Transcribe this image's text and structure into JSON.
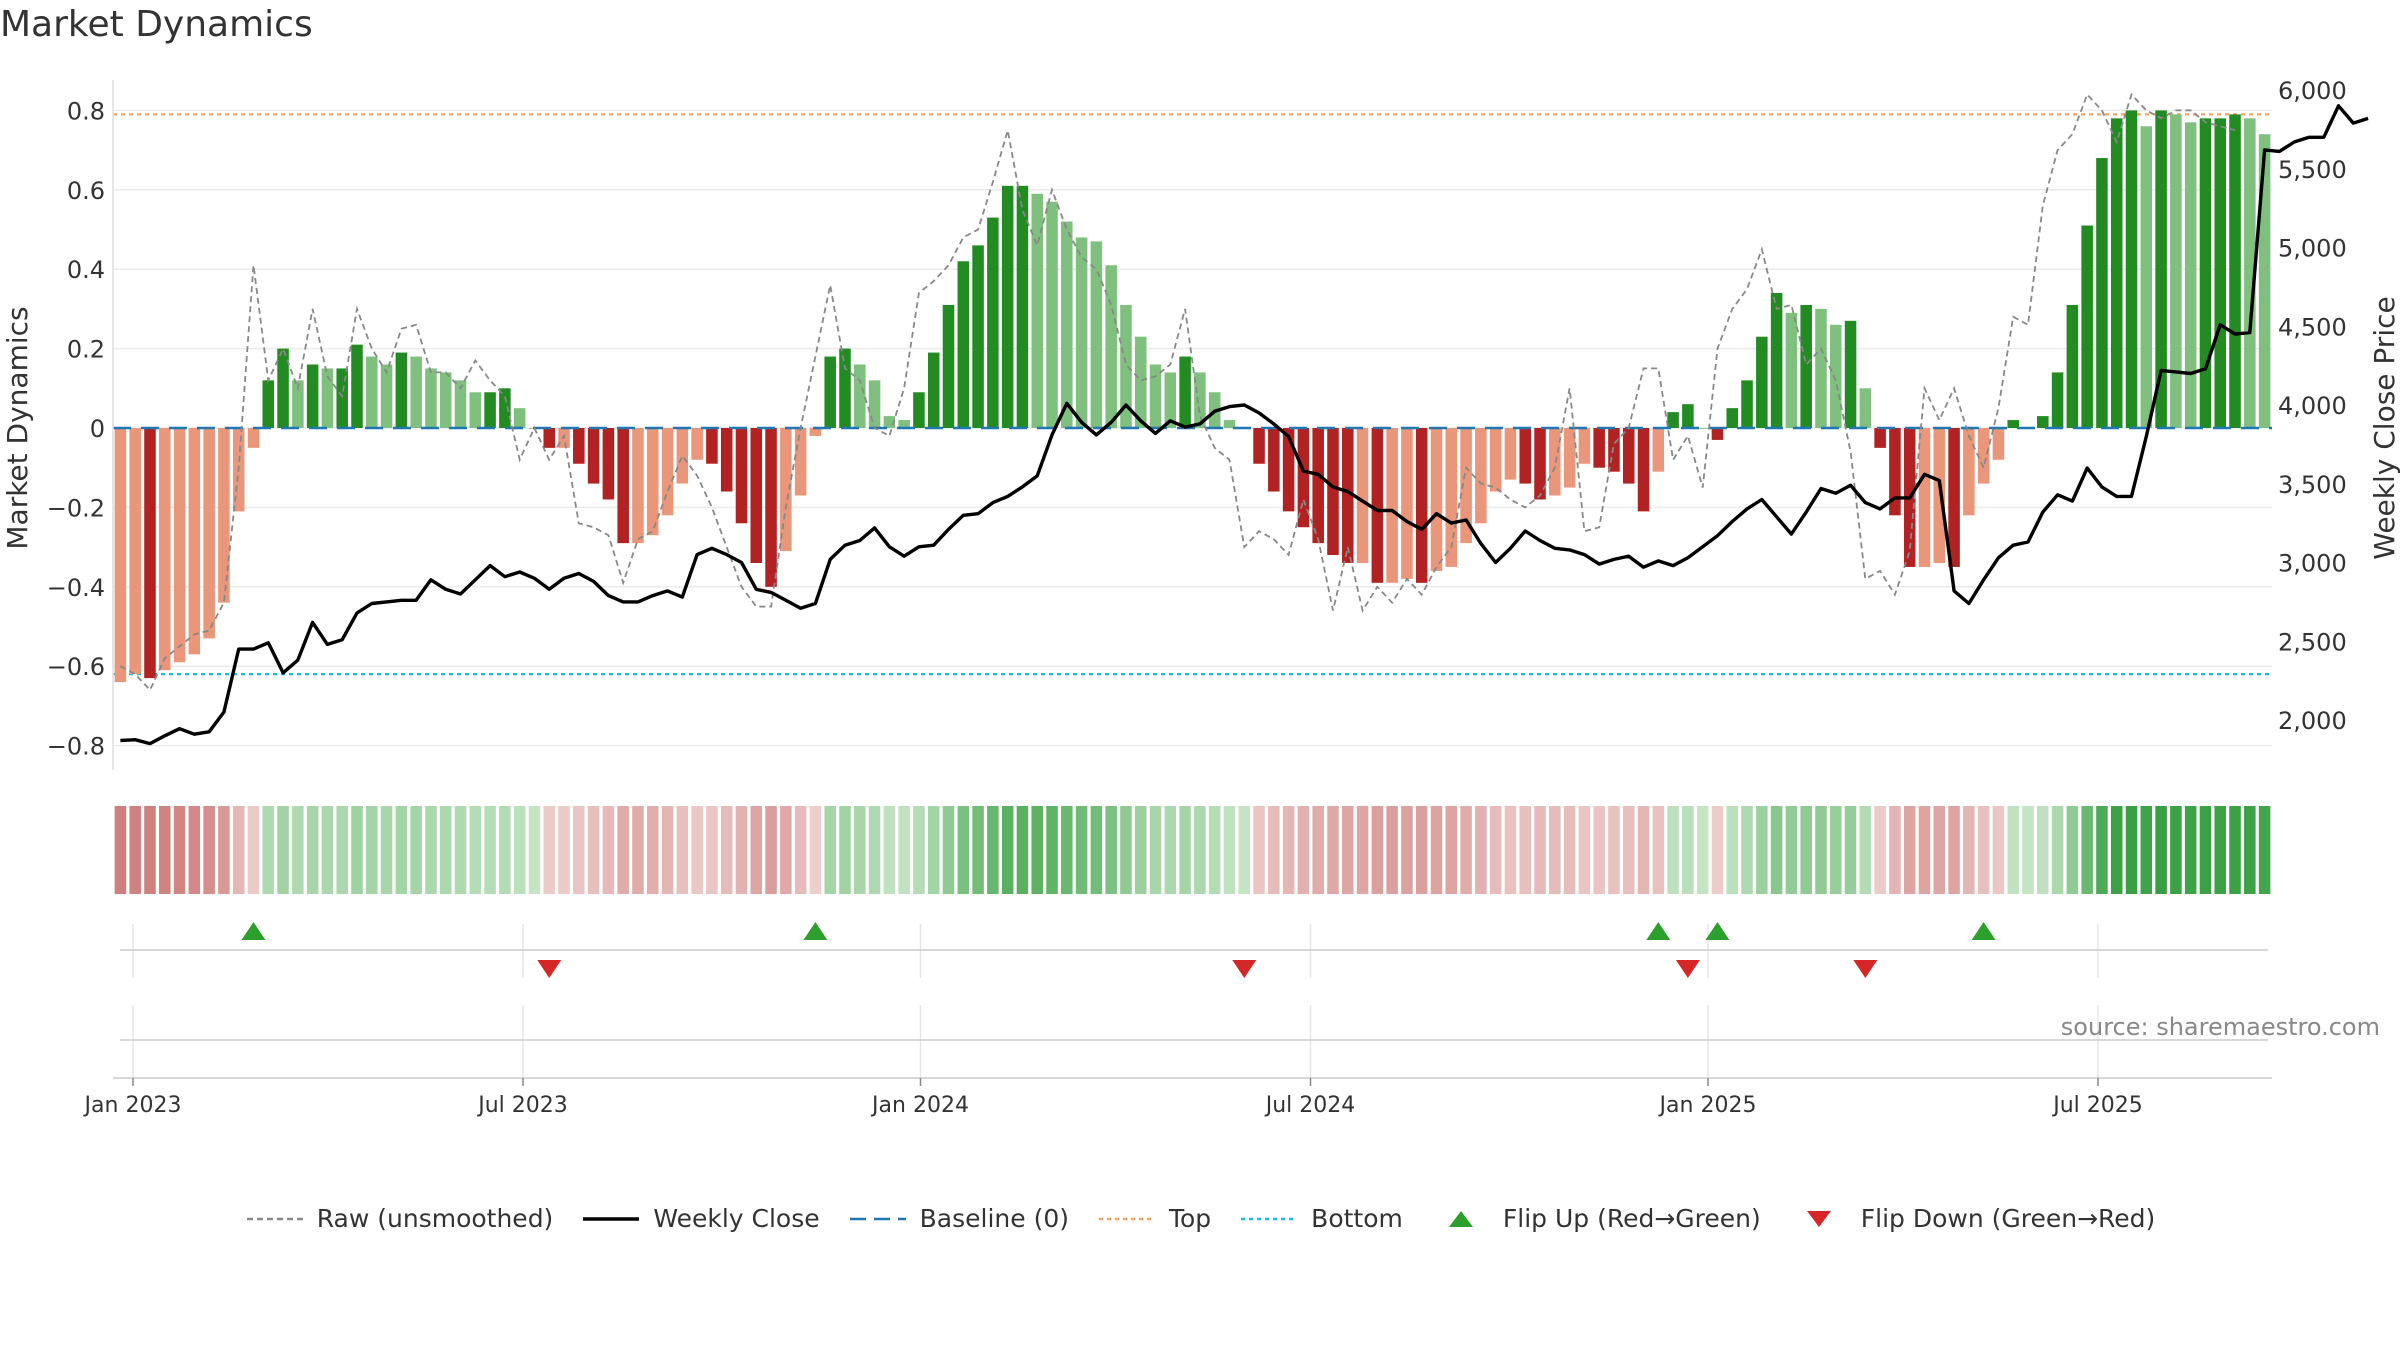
{
  "title": "Market Dynamics",
  "source": "source: sharemaestro.com",
  "chart_data": {
    "type": "bar+line",
    "left_axis": {
      "label": "Market Dynamics",
      "ylim": [
        -0.88,
        0.88
      ],
      "ticks": [
        0.8,
        0.6,
        0.4,
        0.2,
        0,
        -0.2,
        -0.4,
        -0.6,
        -0.8
      ],
      "tick_labels": [
        "0.8",
        "0.6",
        "0.4",
        "0.2",
        "0",
        "−0.2",
        "−0.4",
        "−0.6",
        "−0.8"
      ]
    },
    "right_axis": {
      "label": "Weekly Close Price",
      "ticks": [
        6000,
        5500,
        5000,
        4500,
        4000,
        3500,
        3000,
        2500,
        2000
      ],
      "tick_labels": [
        "6,000",
        "5,500",
        "5,000",
        "4,500",
        "4,000",
        "3,500",
        "3,000",
        "2,500",
        "2,000"
      ]
    },
    "x_ticks": [
      {
        "week": 0,
        "label": "Jan 2023"
      },
      {
        "week": 26,
        "label": "Jul 2023"
      },
      {
        "week": 52.5,
        "label": "Jan 2024"
      },
      {
        "week": 78.5,
        "label": "Jul 2024"
      },
      {
        "week": 105,
        "label": "Jan 2025"
      },
      {
        "week": 131,
        "label": "Jul 2025"
      }
    ],
    "top_line": 0.79,
    "bottom_line": -0.62,
    "smoothed": [
      -0.64,
      -0.62,
      -0.63,
      -0.61,
      -0.59,
      -0.57,
      -0.53,
      -0.44,
      -0.21,
      -0.05,
      0.12,
      0.2,
      0.12,
      0.16,
      0.15,
      0.15,
      0.21,
      0.18,
      0.16,
      0.19,
      0.18,
      0.15,
      0.14,
      0.12,
      0.09,
      0.09,
      0.1,
      0.05,
      0,
      -0.05,
      -0.05,
      -0.09,
      -0.14,
      -0.18,
      -0.29,
      -0.29,
      -0.27,
      -0.22,
      -0.14,
      -0.08,
      -0.09,
      -0.16,
      -0.24,
      -0.34,
      -0.4,
      -0.31,
      -0.17,
      -0.02,
      0.18,
      0.2,
      0.16,
      0.12,
      0.03,
      0.02,
      0.09,
      0.19,
      0.31,
      0.42,
      0.46,
      0.53,
      0.61,
      0.61,
      0.59,
      0.57,
      0.52,
      0.48,
      0.47,
      0.41,
      0.31,
      0.23,
      0.16,
      0.14,
      0.18,
      0.14,
      0.09,
      0.02,
      0,
      -0.09,
      -0.16,
      -0.21,
      -0.25,
      -0.29,
      -0.32,
      -0.34,
      -0.34,
      -0.39,
      -0.39,
      -0.38,
      -0.39,
      -0.36,
      -0.35,
      -0.29,
      -0.24,
      -0.16,
      -0.13,
      -0.14,
      -0.18,
      -0.17,
      -0.15,
      -0.09,
      -0.1,
      -0.11,
      -0.14,
      -0.21,
      -0.11,
      0.04,
      0.06,
      0,
      -0.03,
      0.05,
      0.12,
      0.23,
      0.34,
      0.29,
      0.31,
      0.3,
      0.26,
      0.27,
      0.1,
      -0.05,
      -0.22,
      -0.35,
      -0.35,
      -0.34,
      -0.35,
      -0.22,
      -0.14,
      -0.08,
      0.02,
      0,
      0.03,
      0.14,
      0.31,
      0.51,
      0.68,
      0.78,
      0.8,
      0.76,
      0.8,
      0.79,
      0.77,
      0.78,
      0.78,
      0.79,
      0.78,
      0.74
    ],
    "raw": [
      -0.6,
      -0.62,
      -0.66,
      -0.58,
      -0.55,
      -0.52,
      -0.51,
      -0.44,
      -0.1,
      0.41,
      0.12,
      0.2,
      0.1,
      0.3,
      0.13,
      0.08,
      0.3,
      0.2,
      0.14,
      0.25,
      0.26,
      0.14,
      0.14,
      0.1,
      0.17,
      0.12,
      0.08,
      -0.08,
      0,
      -0.08,
      -0.02,
      -0.24,
      -0.25,
      -0.27,
      -0.39,
      -0.28,
      -0.26,
      -0.16,
      -0.07,
      -0.12,
      -0.2,
      -0.3,
      -0.4,
      -0.45,
      -0.45,
      -0.2,
      0,
      0.18,
      0.36,
      0.15,
      0.12,
      0,
      -0.02,
      0.1,
      0.34,
      0.37,
      0.41,
      0.48,
      0.5,
      0.62,
      0.75,
      0.55,
      0.46,
      0.6,
      0.5,
      0.43,
      0.4,
      0.31,
      0.16,
      0.12,
      0.13,
      0.16,
      0.3,
      0.03,
      -0.05,
      -0.08,
      -0.3,
      -0.26,
      -0.28,
      -0.32,
      -0.18,
      -0.28,
      -0.46,
      -0.3,
      -0.46,
      -0.4,
      -0.44,
      -0.38,
      -0.42,
      -0.35,
      -0.3,
      -0.1,
      -0.14,
      -0.15,
      -0.18,
      -0.2,
      -0.17,
      -0.1,
      0.1,
      -0.26,
      -0.25,
      -0.04,
      0,
      0.15,
      0.15,
      -0.08,
      -0.02,
      -0.15,
      0.2,
      0.3,
      0.35,
      0.45,
      0.3,
      0.31,
      0.16,
      0.2,
      0.12,
      -0.06,
      -0.38,
      -0.36,
      -0.42,
      -0.31,
      0.1,
      0.02,
      0.1,
      -0.02,
      -0.1,
      0.05,
      0.28,
      0.26,
      0.56,
      0.7,
      0.74,
      0.84,
      0.8,
      0.72,
      0.84,
      0.8,
      0.78,
      0.8,
      0.8,
      0.77,
      0.76,
      0.75
    ],
    "weekly_close": [
      1870,
      1875,
      1850,
      1900,
      1945,
      1910,
      1925,
      2050,
      2450,
      2450,
      2490,
      2300,
      2380,
      2620,
      2480,
      2510,
      2680,
      2740,
      2750,
      2760,
      2760,
      2890,
      2830,
      2800,
      2890,
      2980,
      2910,
      2940,
      2900,
      2830,
      2900,
      2930,
      2880,
      2790,
      2750,
      2750,
      2790,
      2820,
      2780,
      3050,
      3090,
      3050,
      3000,
      2830,
      2810,
      2760,
      2710,
      2740,
      3020,
      3110,
      3140,
      3220,
      3100,
      3040,
      3100,
      3110,
      3210,
      3300,
      3310,
      3380,
      3420,
      3480,
      3550,
      3810,
      4010,
      3890,
      3810,
      3890,
      4000,
      3900,
      3820,
      3900,
      3860,
      3880,
      3960,
      3990,
      4000,
      3950,
      3880,
      3800,
      3580,
      3560,
      3480,
      3450,
      3390,
      3330,
      3330,
      3260,
      3210,
      3310,
      3250,
      3270,
      3120,
      3000,
      3090,
      3200,
      3140,
      3090,
      3080,
      3050,
      2990,
      3020,
      3040,
      2970,
      3010,
      2980,
      3030,
      3100,
      3170,
      3260,
      3340,
      3400,
      3290,
      3180,
      3320,
      3470,
      3440,
      3490,
      3380,
      3340,
      3410,
      3410,
      3560,
      3520,
      2820,
      2740,
      2890,
      3030,
      3110,
      3130,
      3320,
      3430,
      3390,
      3600,
      3480,
      3420,
      3420,
      3800,
      4220,
      4210,
      4200,
      4230,
      4510,
      4450,
      4460,
      5620,
      5610,
      5670,
      5700,
      5700,
      5900,
      5790,
      5820
    ],
    "flip_up_weeks": [
      9,
      47,
      104,
      108,
      126
    ],
    "flip_down_weeks": [
      29,
      76,
      106,
      118
    ],
    "legend": [
      {
        "label": "Raw (unsmoothed)",
        "style": "dashed",
        "color": "#888888"
      },
      {
        "label": "Weekly Close",
        "style": "solid",
        "color": "#000000"
      },
      {
        "label": "Baseline (0)",
        "style": "longdash",
        "color": "#1f77b4"
      },
      {
        "label": "Top",
        "style": "dotted",
        "color": "#f4a460"
      },
      {
        "label": "Bottom",
        "style": "dotted",
        "color": "#17becf"
      },
      {
        "label": "Flip Up (Red→Green)",
        "style": "triangle-up",
        "color": "#2ca02c"
      },
      {
        "label": "Flip Down (Green→Red)",
        "style": "triangle-down",
        "color": "#d62728"
      }
    ],
    "colors": {
      "strong_green": "#228b22",
      "light_green": "#7fc07f",
      "strong_red": "#b22222",
      "light_red": "#e9967a",
      "raw": "#888888",
      "close": "#000000",
      "baseline": "#1f77b4",
      "top": "#f4a460",
      "bottom": "#17becf",
      "flip_up": "#2ca02c",
      "flip_down": "#d62728"
    }
  }
}
